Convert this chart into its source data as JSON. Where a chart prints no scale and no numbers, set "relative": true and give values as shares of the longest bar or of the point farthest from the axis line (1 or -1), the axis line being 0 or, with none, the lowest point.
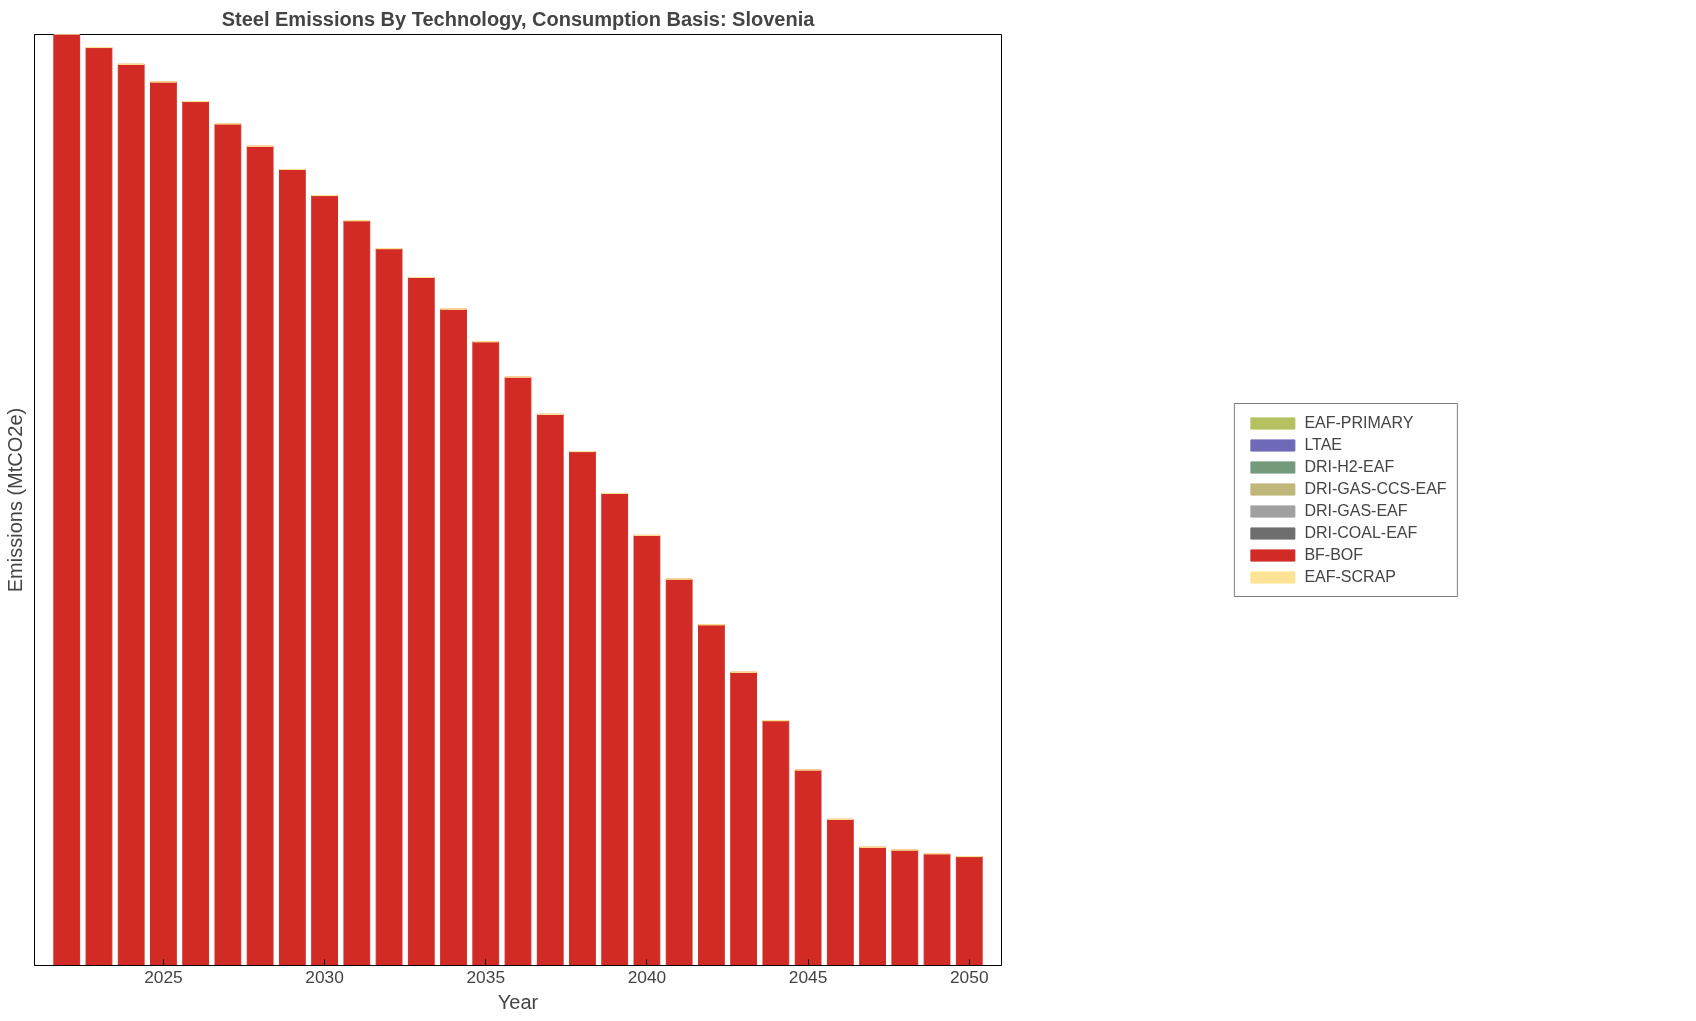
{
  "chart_data": {
    "type": "bar",
    "title": "Steel Emissions By Technology, Consumption Basis: Slovenia",
    "xlabel": "Year",
    "ylabel": "Emissions (MtCO2e)",
    "relative": true,
    "stacked": true,
    "legend": "right",
    "grid": false,
    "x": [
      2022,
      2023,
      2024,
      2025,
      2026,
      2027,
      2028,
      2029,
      2030,
      2031,
      2032,
      2033,
      2034,
      2035,
      2036,
      2037,
      2038,
      2039,
      2040,
      2041,
      2042,
      2043,
      2044,
      2045,
      2046,
      2047,
      2048,
      2049,
      2050
    ],
    "xlim": [
      2021,
      2051
    ],
    "xticks": [
      2025,
      2030,
      2035,
      2040,
      2045,
      2050
    ],
    "series": [
      {
        "name": "EAF-PRIMARY",
        "color": "#b5c160",
        "values": [
          0,
          0,
          0,
          0,
          0,
          0,
          0,
          0,
          0,
          0,
          0,
          0,
          0,
          0,
          0,
          0,
          0,
          0,
          0,
          0,
          0,
          0,
          0,
          0,
          0,
          0,
          0,
          0,
          0
        ]
      },
      {
        "name": "LTAE",
        "color": "#6f6ab8",
        "values": [
          0,
          0,
          0,
          0,
          0,
          0,
          0,
          0,
          0,
          0,
          0,
          0,
          0,
          0,
          0,
          0,
          0,
          0,
          0,
          0,
          0,
          0,
          0,
          0,
          0,
          0,
          0,
          0,
          0
        ]
      },
      {
        "name": "DRI-H2-EAF",
        "color": "#749a7c",
        "values": [
          0,
          0,
          0,
          0,
          0,
          0,
          0,
          0,
          0,
          0,
          0,
          0,
          0,
          0,
          0,
          0,
          0,
          0,
          0,
          0,
          0,
          0,
          0,
          0,
          0,
          0,
          0,
          0,
          0
        ]
      },
      {
        "name": "DRI-GAS-CCS-EAF",
        "color": "#c0b77a",
        "values": [
          0,
          0,
          0,
          0,
          0,
          0,
          0,
          0,
          0,
          0,
          0,
          0,
          0,
          0,
          0,
          0,
          0,
          0,
          0,
          0,
          0,
          0,
          0,
          0,
          0,
          0,
          0,
          0,
          0
        ]
      },
      {
        "name": "DRI-GAS-EAF",
        "color": "#a0a0a0",
        "values": [
          0,
          0,
          0,
          0,
          0,
          0,
          0,
          0,
          0,
          0,
          0,
          0,
          0,
          0,
          0,
          0,
          0,
          0,
          0,
          0,
          0,
          0,
          0,
          0,
          0,
          0,
          0,
          0,
          0
        ]
      },
      {
        "name": "DRI-COAL-EAF",
        "color": "#6e6e6e",
        "values": [
          0,
          0,
          0,
          0,
          0,
          0,
          0,
          0,
          0,
          0,
          0,
          0,
          0,
          0,
          0,
          0,
          0,
          0,
          0,
          0,
          0,
          0,
          0,
          0,
          0,
          0,
          0,
          0,
          0
        ]
      },
      {
        "name": "BF-BOF",
        "color": "#d22b26",
        "values": [
          1,
          0.986,
          0.968,
          0.949,
          0.928,
          0.904,
          0.88,
          0.855,
          0.827,
          0.8,
          0.77,
          0.739,
          0.705,
          0.67,
          0.632,
          0.592,
          0.552,
          0.507,
          0.462,
          0.415,
          0.366,
          0.315,
          0.263,
          0.21,
          0.157,
          0.127,
          0.124,
          0.12,
          0.117
        ]
      },
      {
        "name": "EAF-SCRAP",
        "color": "#fde395",
        "values": [
          0,
          0,
          0,
          0,
          0,
          0,
          0,
          0,
          0,
          0,
          0,
          0,
          0,
          0,
          0,
          0,
          0,
          0,
          0,
          0,
          0,
          0,
          0,
          0,
          0,
          0,
          0,
          0,
          0
        ]
      }
    ]
  }
}
